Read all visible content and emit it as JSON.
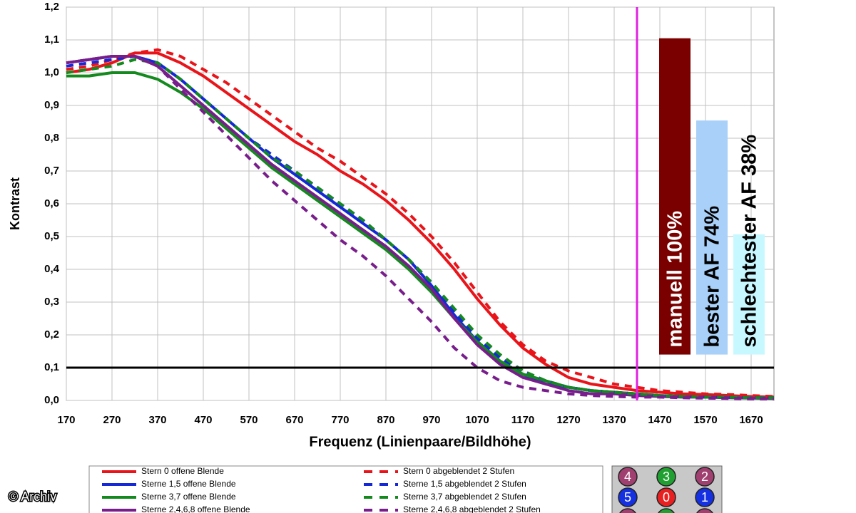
{
  "chart_data": {
    "type": "line",
    "y_label": "Kontrast",
    "x_label": "Frequenz (Linienpaare/Bildhöhe)",
    "x": [
      170,
      220,
      270,
      320,
      370,
      420,
      470,
      520,
      570,
      620,
      670,
      720,
      770,
      820,
      870,
      920,
      970,
      1020,
      1070,
      1120,
      1170,
      1220,
      1270,
      1320,
      1370,
      1420,
      1470,
      1520,
      1570,
      1620,
      1670,
      1720
    ],
    "xlim": [
      170,
      1720
    ],
    "xticks": [
      170,
      270,
      370,
      470,
      570,
      670,
      770,
      870,
      970,
      1070,
      1170,
      1270,
      1370,
      1470,
      1570,
      1670
    ],
    "ylim": [
      0,
      1.2
    ],
    "yticks": [
      {
        "value": 0,
        "label": "0,0"
      },
      {
        "value": 0.1,
        "label": "0,1"
      },
      {
        "value": 0.2,
        "label": "0,2"
      },
      {
        "value": 0.3,
        "label": "0,3"
      },
      {
        "value": 0.4,
        "label": "0,4"
      },
      {
        "value": 0.5,
        "label": "0,5"
      },
      {
        "value": 0.6,
        "label": "0,6"
      },
      {
        "value": 0.7,
        "label": "0,7"
      },
      {
        "value": 0.8,
        "label": "0,8"
      },
      {
        "value": 0.9,
        "label": "0,9"
      },
      {
        "value": 1,
        "label": "1,0"
      },
      {
        "value": 1.1,
        "label": "1,1"
      },
      {
        "value": 1.2,
        "label": "1,2"
      }
    ],
    "grid": true,
    "hline": 0.1,
    "vline": 1420,
    "series": [
      {
        "name": "Stern 0 offene Blende",
        "color": "#e8141a",
        "dashed": false,
        "values": [
          1.0,
          1.01,
          1.03,
          1.06,
          1.06,
          1.03,
          0.99,
          0.94,
          0.89,
          0.84,
          0.79,
          0.75,
          0.7,
          0.66,
          0.61,
          0.55,
          0.48,
          0.4,
          0.31,
          0.23,
          0.16,
          0.11,
          0.07,
          0.05,
          0.04,
          0.03,
          0.025,
          0.02,
          0.018,
          0.015,
          0.012,
          0.01
        ]
      },
      {
        "name": "Sterne 1,5 offene Blende",
        "color": "#1428d8",
        "dashed": false,
        "values": [
          1.03,
          1.04,
          1.05,
          1.05,
          1.03,
          0.98,
          0.92,
          0.86,
          0.8,
          0.74,
          0.69,
          0.64,
          0.59,
          0.54,
          0.49,
          0.43,
          0.35,
          0.26,
          0.18,
          0.12,
          0.08,
          0.05,
          0.04,
          0.03,
          0.025,
          0.02,
          0.015,
          0.012,
          0.01,
          0.01,
          0.008,
          0.008
        ]
      },
      {
        "name": "Sterne 3,7 offene Blende",
        "color": "#148a1e",
        "dashed": false,
        "values": [
          0.99,
          0.99,
          1.0,
          1.0,
          0.98,
          0.94,
          0.89,
          0.83,
          0.77,
          0.71,
          0.66,
          0.61,
          0.56,
          0.51,
          0.46,
          0.4,
          0.33,
          0.25,
          0.18,
          0.12,
          0.08,
          0.06,
          0.04,
          0.03,
          0.025,
          0.02,
          0.015,
          0.012,
          0.01,
          0.01,
          0.008,
          0.008
        ]
      },
      {
        "name": "Sterne 2,4,6,8 offene Blende",
        "color": "#781e8c",
        "dashed": false,
        "values": [
          1.03,
          1.04,
          1.05,
          1.05,
          1.02,
          0.96,
          0.9,
          0.84,
          0.78,
          0.72,
          0.67,
          0.62,
          0.57,
          0.52,
          0.47,
          0.41,
          0.34,
          0.25,
          0.17,
          0.11,
          0.07,
          0.05,
          0.03,
          0.02,
          0.02,
          0.015,
          0.012,
          0.01,
          0.01,
          0.008,
          0.007,
          0.006
        ]
      },
      {
        "name": "Stern 0 abgeblendet 2 Stufen",
        "color": "#e8141a",
        "dashed": true,
        "values": [
          1.01,
          1.02,
          1.04,
          1.06,
          1.07,
          1.05,
          1.01,
          0.97,
          0.92,
          0.87,
          0.82,
          0.77,
          0.73,
          0.68,
          0.63,
          0.57,
          0.5,
          0.42,
          0.33,
          0.24,
          0.17,
          0.12,
          0.09,
          0.07,
          0.05,
          0.04,
          0.03,
          0.025,
          0.02,
          0.018,
          0.015,
          0.012
        ]
      },
      {
        "name": "Sterne 1,5 abgeblendet 2 Stufen",
        "color": "#1428d8",
        "dashed": true,
        "values": [
          1.02,
          1.03,
          1.04,
          1.05,
          1.03,
          0.98,
          0.92,
          0.86,
          0.8,
          0.75,
          0.7,
          0.65,
          0.6,
          0.55,
          0.49,
          0.43,
          0.36,
          0.27,
          0.19,
          0.13,
          0.09,
          0.06,
          0.04,
          0.03,
          0.025,
          0.02,
          0.015,
          0.012,
          0.01,
          0.01,
          0.008,
          0.008
        ]
      },
      {
        "name": "Sterne 3,7 abgeblendet 2 Stufen",
        "color": "#148a1e",
        "dashed": true,
        "values": [
          1.0,
          1.01,
          1.02,
          1.04,
          1.03,
          0.98,
          0.92,
          0.86,
          0.8,
          0.74,
          0.7,
          0.65,
          0.6,
          0.55,
          0.49,
          0.43,
          0.36,
          0.28,
          0.2,
          0.14,
          0.09,
          0.06,
          0.04,
          0.03,
          0.025,
          0.02,
          0.015,
          0.012,
          0.01,
          0.01,
          0.008,
          0.008
        ]
      },
      {
        "name": "Sterne 2,4,6,8 abgeblendet 2 Stufen",
        "color": "#781e8c",
        "dashed": true,
        "values": [
          1.03,
          1.04,
          1.05,
          1.05,
          1.02,
          0.95,
          0.88,
          0.81,
          0.74,
          0.67,
          0.61,
          0.55,
          0.49,
          0.44,
          0.38,
          0.31,
          0.24,
          0.16,
          0.1,
          0.06,
          0.04,
          0.03,
          0.02,
          0.015,
          0.012,
          0.01,
          0.01,
          0.008,
          0.007,
          0.006,
          0.005,
          0.005
        ]
      }
    ],
    "af_bars": [
      {
        "label": "manuell 100%",
        "value": 100,
        "color": "#7a0000",
        "text_color": "#ffffff"
      },
      {
        "label": "bester AF 74%",
        "value": 74,
        "color": "#a8d0f8",
        "text_color": "#000000"
      },
      {
        "label": "schlechtester AF 38%",
        "value": 38,
        "color": "#c8f8ff",
        "text_color": "#000000"
      }
    ],
    "star_grid": [
      [
        {
          "label": "4",
          "color": "#a04070"
        },
        {
          "label": "3",
          "color": "#20a030"
        },
        {
          "label": "2",
          "color": "#a04070"
        }
      ],
      [
        {
          "label": "5",
          "color": "#1430e0"
        },
        {
          "label": "0",
          "color": "#e82020"
        },
        {
          "label": "1",
          "color": "#1430e0"
        }
      ]
    ],
    "credit": "© Archiv"
  }
}
